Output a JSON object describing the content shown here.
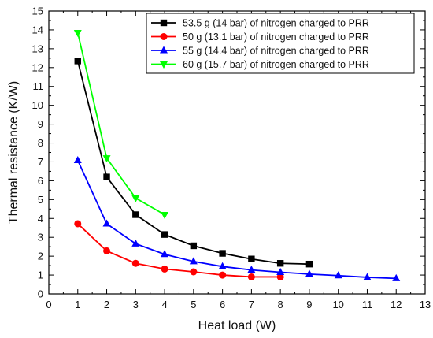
{
  "chart_data": {
    "type": "line",
    "title": "",
    "xlabel": "Heat load (W)",
    "ylabel": "Thermal resistance (K/W)",
    "xlim": [
      0,
      13
    ],
    "ylim": [
      0,
      15
    ],
    "xticks": [
      "0",
      "1",
      "2",
      "3",
      "4",
      "5",
      "6",
      "7",
      "8",
      "9",
      "10",
      "11",
      "12",
      "13"
    ],
    "yticks": [
      "0",
      "1",
      "2",
      "3",
      "4",
      "5",
      "6",
      "7",
      "8",
      "9",
      "10",
      "11",
      "12",
      "13",
      "14",
      "15"
    ],
    "grid": false,
    "legend_position": "top-right",
    "series": [
      {
        "name": "53.5 g (14 bar) of nitrogen charged to PRR",
        "color": "#000000",
        "marker": "square",
        "x": [
          1,
          2,
          3,
          4,
          5,
          6,
          7,
          8,
          9
        ],
        "y": [
          12.35,
          6.2,
          4.2,
          3.15,
          2.55,
          2.15,
          1.85,
          1.62,
          1.58
        ]
      },
      {
        "name": "50 g (13.1 bar) of nitrogen charged to PRR",
        "color": "#ff0000",
        "marker": "circle",
        "x": [
          1,
          2,
          3,
          4,
          5,
          6,
          7,
          8
        ],
        "y": [
          3.72,
          2.28,
          1.62,
          1.32,
          1.17,
          1.0,
          0.9,
          0.9
        ]
      },
      {
        "name": "55 g (14.4 bar) of nitrogen charged to PRR",
        "color": "#0000ff",
        "marker": "triangle-up",
        "x": [
          1,
          2,
          3,
          4,
          5,
          6,
          7,
          8,
          9,
          10,
          11,
          12
        ],
        "y": [
          7.08,
          3.72,
          2.66,
          2.1,
          1.72,
          1.45,
          1.27,
          1.15,
          1.05,
          0.97,
          0.88,
          0.82
        ]
      },
      {
        "name": "60 g (15.7 bar) of nitrogen charged to PRR",
        "color": "#00ff00",
        "marker": "triangle-down",
        "x": [
          1,
          2,
          3,
          4
        ],
        "y": [
          13.85,
          7.2,
          5.08,
          4.2
        ]
      }
    ]
  }
}
